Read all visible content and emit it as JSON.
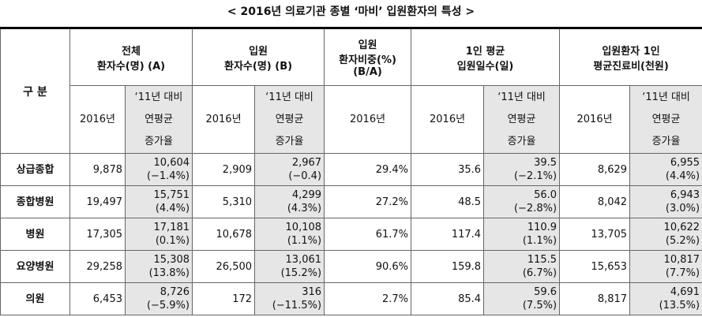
{
  "title": "< 2016년 의료기관 종별 ‘마비’ 입원환자의 특성 >",
  "table": {
    "corner": "구  분",
    "groups": [
      {
        "label": "전체\n환자수(명) (A)",
        "columns": [
          "2016년",
          "‘11년 대비\n연평균\n증가율"
        ]
      },
      {
        "label": "입원\n환자수(명) (B)",
        "columns": [
          "2016년",
          "‘11년 대비\n연평균\n증가율"
        ]
      },
      {
        "label": "입원\n환자비중(%)\n(B/A)",
        "columns": [
          "2016년"
        ]
      },
      {
        "label": "1인 평균\n입원일수(일)",
        "columns": [
          "2016년",
          "‘11년 대비\n연평균\n증가율"
        ]
      },
      {
        "label": "입원환자 1인\n평균진료비(천원)",
        "columns": [
          "2016년",
          "‘11년 대비\n연평균\n증가율"
        ]
      }
    ],
    "rows": [
      {
        "label": "상급종합",
        "cells": [
          "9,878",
          "10,604\n(−1.4%)",
          "2,909",
          "2,967\n(−0.4)",
          "29.4%",
          "35.6",
          "39.5\n(−2.1%)",
          "8,629",
          "6,955\n(4.4%)"
        ]
      },
      {
        "label": "종합병원",
        "cells": [
          "19,497",
          "15,751\n(4.4%)",
          "5,310",
          "4,299\n(4.3%)",
          "27.2%",
          "48.5",
          "56.0\n(−2.8%)",
          "8,042",
          "6,943\n(3.0%)"
        ]
      },
      {
        "label": "병원",
        "cells": [
          "17,305",
          "17,181\n(0.1%)",
          "10,678",
          "10,108\n(1.1%)",
          "61.7%",
          "117.4",
          "110.9\n(1.1%)",
          "13,705",
          "10,622\n(5.2%)"
        ]
      },
      {
        "label": "요양병원",
        "cells": [
          "29,258",
          "15,308\n(13.8%)",
          "26,500",
          "13,061\n(15.2%)",
          "90.6%",
          "159.8",
          "115.5\n(6.7%)",
          "15,653",
          "10,817\n(7.7%)"
        ]
      },
      {
        "label": "의원",
        "cells": [
          "6,453",
          "8,726\n(−5.9%)",
          "172",
          "316\n(−11.5%)",
          "2.7%",
          "85.4",
          "59.6\n(7.5%)",
          "8,817",
          "4,691\n(13.5%)"
        ]
      }
    ]
  }
}
